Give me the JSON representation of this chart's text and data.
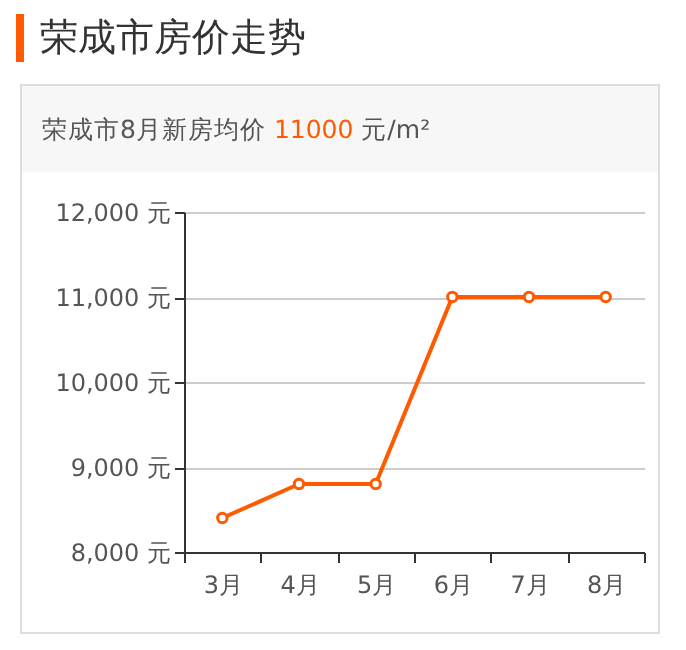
{
  "chart_data": {
    "type": "line",
    "title": "荣成市房价走势",
    "subtitle": "荣成市8月新房均价 11000 元/m²",
    "categories": [
      "3月",
      "4月",
      "5月",
      "6月",
      "7月",
      "8月"
    ],
    "series": [
      {
        "color": "#ff5a00",
        "values": [
          8400,
          8800,
          8800,
          11000,
          11000,
          11000
        ]
      }
    ],
    "ylim": [
      8000,
      12000
    ],
    "yticks": [
      {
        "value": 8000,
        "label": "8,000 元"
      },
      {
        "value": 9000,
        "label": "9,000 元"
      },
      {
        "value": 10000,
        "label": "10,000 元"
      },
      {
        "value": 11000,
        "label": "11,000 元"
      },
      {
        "value": 12000,
        "label": "12,000 元"
      }
    ],
    "grid": "y",
    "marker": "circle",
    "line_style": "solid",
    "legend": false
  }
}
